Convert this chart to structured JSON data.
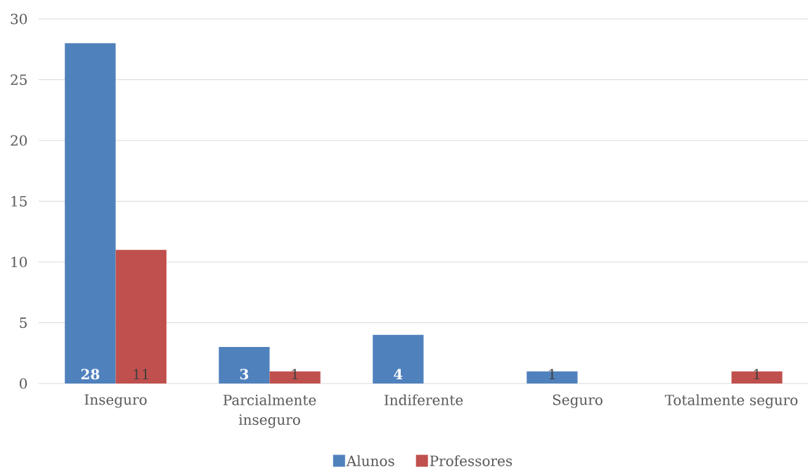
{
  "chart_data": {
    "type": "bar",
    "categories": [
      "Inseguro",
      "Parcialmente inseguro",
      "Indiferente",
      "Seguro",
      "Totalmente seguro"
    ],
    "series": [
      {
        "name": "Alunos",
        "color": "#4f81bd",
        "values": [
          28,
          3,
          4,
          1,
          null
        ]
      },
      {
        "name": "Professores",
        "color": "#c0504d",
        "values": [
          11,
          1,
          null,
          null,
          1
        ]
      }
    ],
    "ylim": [
      0,
      30
    ],
    "yticks": [
      0,
      5,
      10,
      15,
      20,
      25,
      30
    ],
    "grid": "y",
    "legend": "bottom",
    "data_labels": true
  }
}
